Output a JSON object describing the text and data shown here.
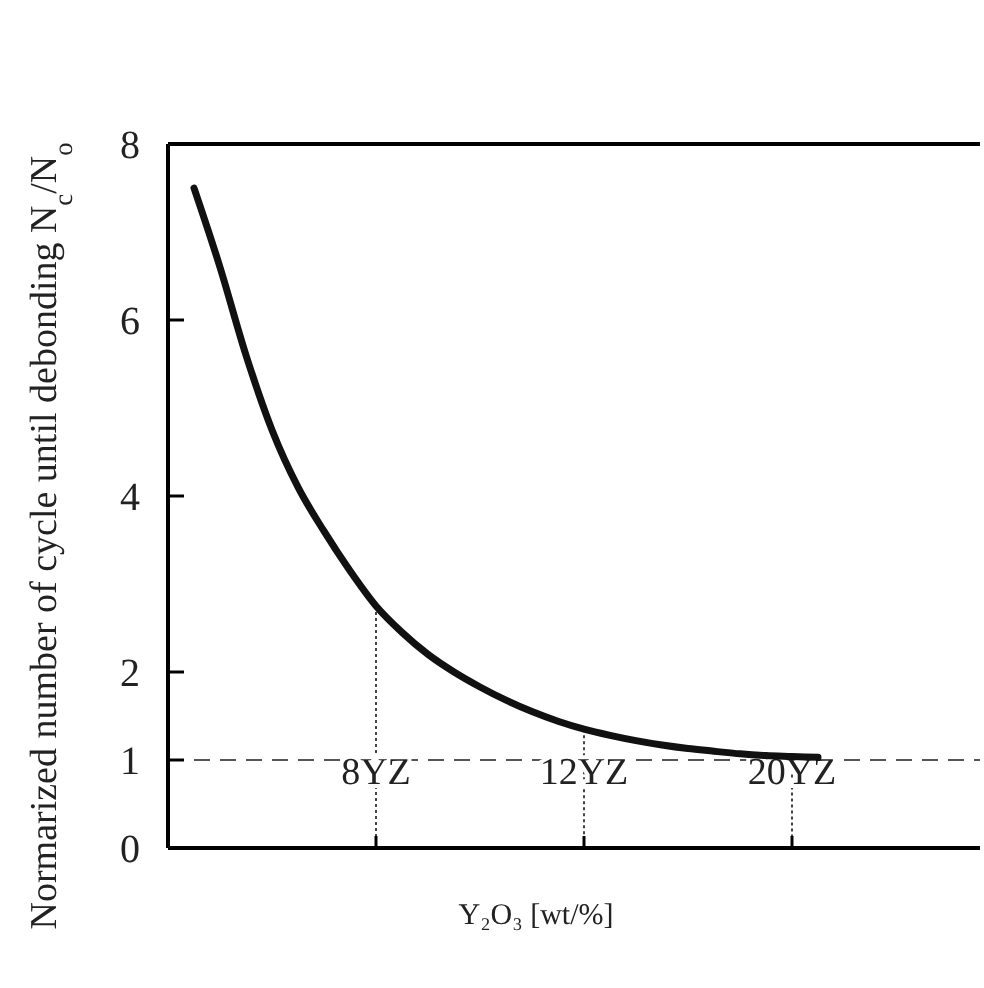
{
  "chart_data": {
    "type": "line",
    "xlabel": "Y₂O₃ [wt/%]",
    "ylabel": "Normarized number of cycle until debonding N$_{c}$/N$_{o}$",
    "categories": [
      null,
      null,
      null,
      null,
      null,
      null,
      null,
      null,
      "8YZ",
      null,
      null,
      null,
      null,
      null,
      null,
      null,
      "12YZ",
      null,
      null,
      null,
      null,
      null,
      null,
      null,
      "20YZ",
      null,
      null,
      null,
      null,
      null,
      null,
      null
    ],
    "series": [
      {
        "color": "#111111",
        "values": [
          null,
          7.5,
          6.6,
          5.6,
          4.75,
          4.1,
          3.6,
          3.15,
          2.75,
          2.45,
          2.2,
          2.0,
          1.83,
          1.68,
          1.55,
          1.44,
          1.35,
          1.28,
          1.22,
          1.17,
          1.13,
          1.1,
          1.07,
          1.05,
          1.04,
          1.03,
          null,
          null,
          null,
          null,
          null,
          null
        ]
      }
    ],
    "ylim": [
      0,
      8
    ],
    "yticks": [
      0,
      1,
      2,
      4,
      6,
      8
    ],
    "ref_lines": [
      {
        "axis": "y",
        "value": 1,
        "color": "#555555",
        "line_style": "dashed"
      },
      {
        "axis": "x",
        "value": "8YZ",
        "color": "#444444",
        "line_style": "dotted"
      },
      {
        "axis": "x",
        "value": "12YZ",
        "color": "#444444",
        "line_style": "dotted"
      },
      {
        "axis": "x",
        "value": "20YZ",
        "color": "#444444",
        "line_style": "dotted"
      }
    ],
    "grid": false,
    "marker": "none",
    "line_style": "solid"
  }
}
